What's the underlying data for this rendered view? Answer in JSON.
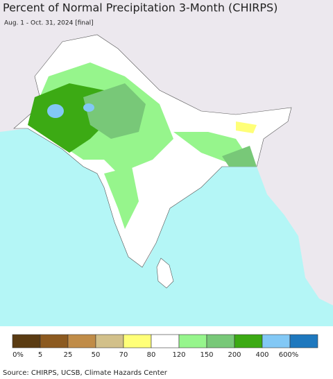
{
  "header": {
    "title": "Percent of Normal Precipitation 3-Month (CHIRPS)",
    "subtitle": "Aug. 1 - Oct. 31, 2024 [final]"
  },
  "legend": {
    "colors": [
      "#5a3b12",
      "#8c5a20",
      "#c08c48",
      "#d2c08a",
      "#ffff78",
      "#ffffff",
      "#96f58c",
      "#78c878",
      "#3caa14",
      "#82c8f5",
      "#1e78be"
    ],
    "labels": [
      "0%",
      "5",
      "25",
      "50",
      "70",
      "80",
      "120",
      "150",
      "200",
      "400",
      "600%"
    ]
  },
  "footer": {
    "source": "Source: CHIRPS, UCSB, Climate Hazards Center"
  }
}
